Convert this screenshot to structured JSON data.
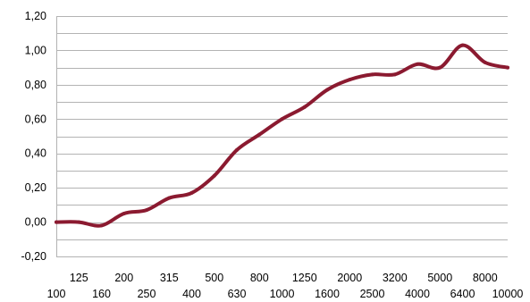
{
  "chart_data": {
    "type": "line",
    "title": "",
    "xlabel": "",
    "ylabel": "",
    "categories": [
      "100",
      "125",
      "160",
      "200",
      "250",
      "315",
      "400",
      "500",
      "630",
      "800",
      "1000",
      "1250",
      "1600",
      "2000",
      "2500",
      "3200",
      "4000",
      "5000",
      "6400",
      "8000",
      "10000"
    ],
    "series": [
      {
        "color": "#8b1a30",
        "values": [
          0.0,
          0.0,
          -0.02,
          0.05,
          0.07,
          0.14,
          0.17,
          0.27,
          0.42,
          0.51,
          0.6,
          0.67,
          0.77,
          0.83,
          0.86,
          0.86,
          0.92,
          0.9,
          1.03,
          0.93,
          0.9
        ]
      }
    ],
    "y_ticks": [
      "1,20",
      "1,00",
      "0,80",
      "0,60",
      "0,40",
      "0,20",
      "0,00",
      "-0,20"
    ],
    "ylim": [
      -0.2,
      1.2
    ],
    "grid": true,
    "legend": "none"
  }
}
